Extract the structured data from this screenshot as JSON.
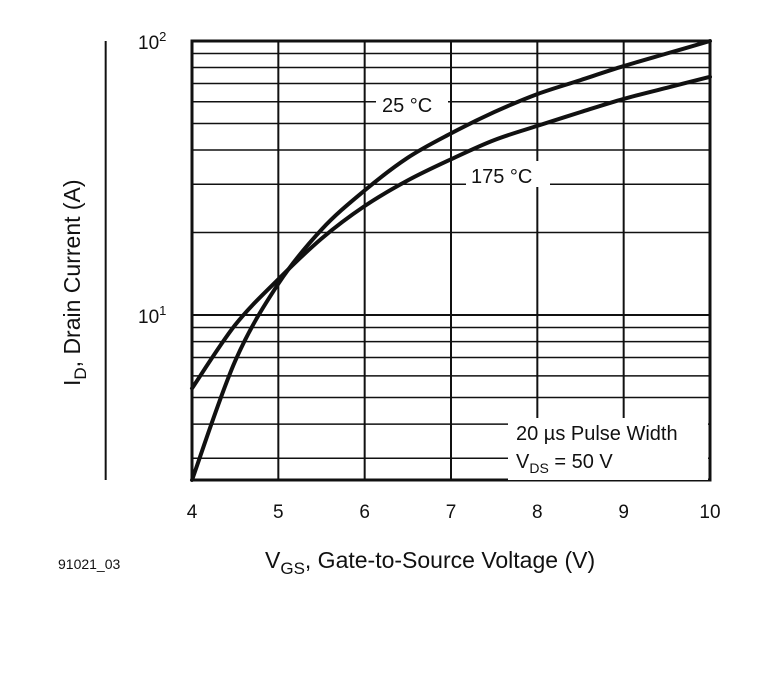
{
  "chart_data": {
    "type": "line",
    "scale": {
      "x": "linear",
      "y": "log"
    },
    "xlim": [
      4,
      10
    ],
    "ylim": [
      2.5,
      100
    ],
    "grid": true,
    "x_ticks": [
      "4",
      "5",
      "6",
      "7",
      "8",
      "9",
      "10"
    ],
    "y_ticks": [
      {
        "value": 10,
        "base": "10",
        "exp": "1"
      },
      {
        "value": 100,
        "base": "10",
        "exp": "2"
      }
    ],
    "xlabel": {
      "main": "V",
      "sub": "GS",
      "rest": ", Gate-to-Source Voltage (V)"
    },
    "ylabel": {
      "main": "I",
      "sub": "D",
      "rest": ", Drain Current (A)"
    },
    "series": [
      {
        "name": "25 °C",
        "x": [
          4.0,
          4.5,
          5.0,
          5.5,
          6.0,
          6.5,
          7.0,
          7.5,
          8.0,
          8.5,
          9.0,
          9.5,
          10.0
        ],
        "y": [
          2.5,
          6.8,
          13.0,
          20.5,
          28.5,
          37.5,
          46.0,
          55.0,
          64.0,
          72.0,
          81.0,
          90.0,
          100.0
        ]
      },
      {
        "name": "175 °C",
        "x": [
          4.0,
          4.5,
          5.0,
          5.5,
          6.0,
          6.5,
          7.0,
          7.5,
          8.0,
          8.5,
          9.0,
          9.5,
          10.0
        ],
        "y": [
          5.4,
          9.2,
          13.5,
          19.0,
          25.0,
          31.0,
          37.0,
          43.5,
          49.0,
          55.0,
          61.5,
          67.5,
          74.0
        ]
      }
    ],
    "annotations": [
      {
        "text_main": "20 µs Pulse Width"
      },
      {
        "text_main": "V",
        "sub": "DS",
        "rest": " = 50 V"
      }
    ],
    "figure_id": "91021_03"
  }
}
